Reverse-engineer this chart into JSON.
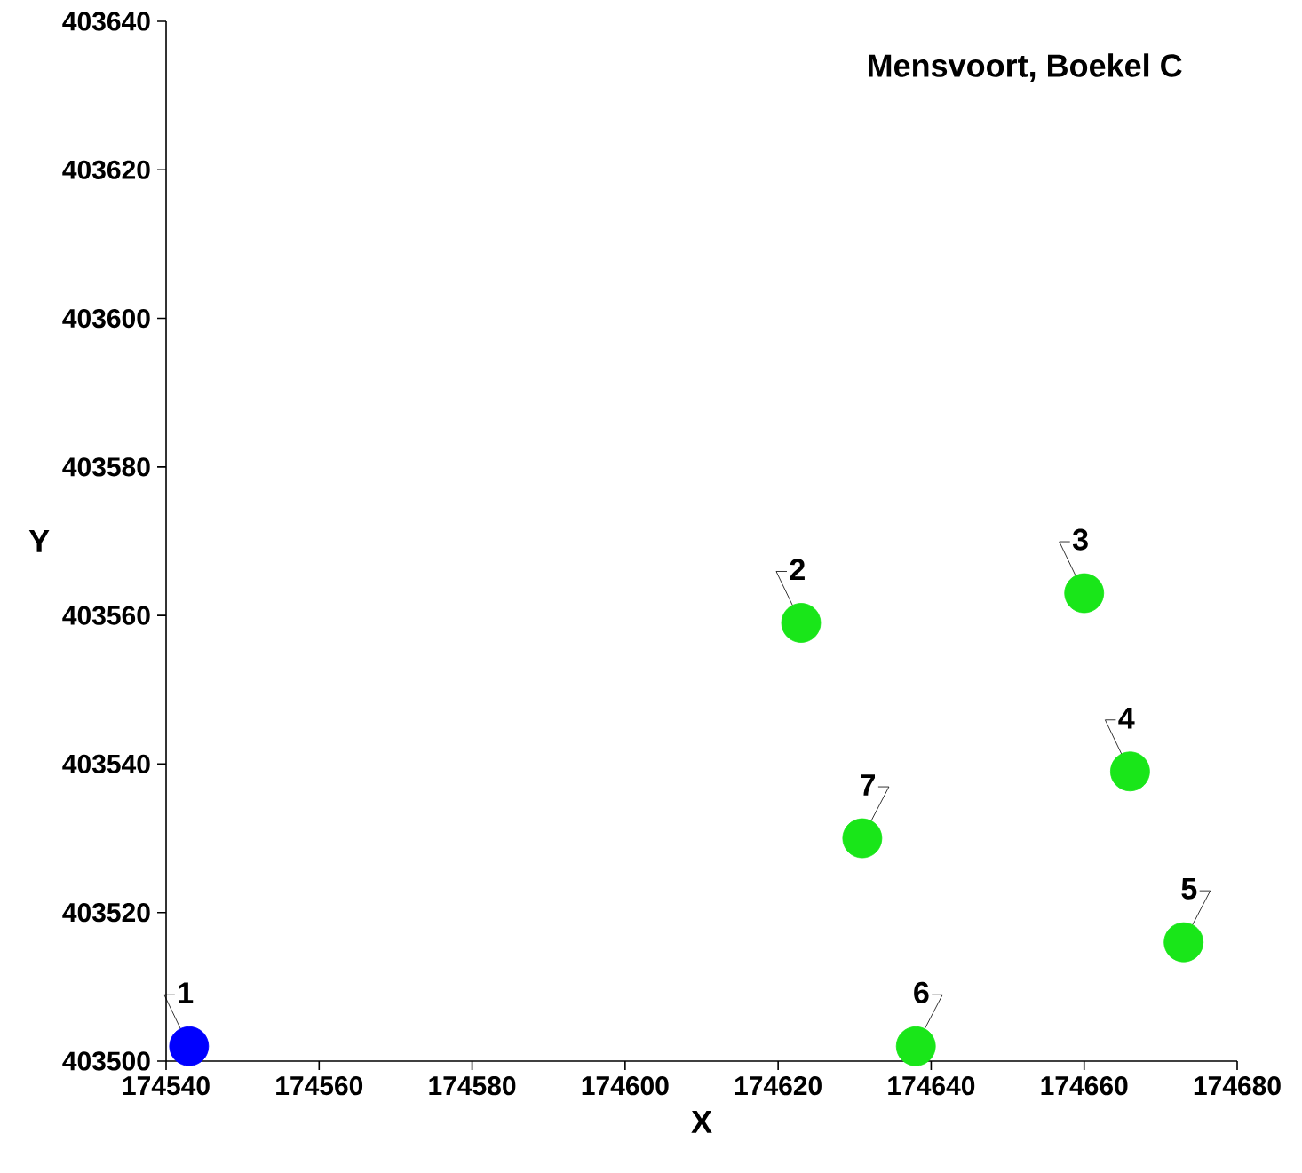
{
  "chart_data": {
    "type": "scatter",
    "title": "Mensvoort, Boekel C",
    "xlabel": "X",
    "ylabel": "Y",
    "series": [
      {
        "color": "#0000ff",
        "x": [
          174543
        ],
        "values": [
          403502
        ]
      },
      {
        "color": "#19e619",
        "x": [
          174623,
          174660,
          174666,
          174673,
          174638,
          174631
        ],
        "values": [
          403559,
          403563,
          403539,
          403516,
          403502,
          403530
        ]
      }
    ],
    "xlim": [
      174540,
      174680
    ],
    "ylim": [
      403500,
      403640
    ],
    "xticks": [
      174540,
      174560,
      174580,
      174600,
      174620,
      174640,
      174660,
      174680
    ],
    "yticks": [
      403500,
      403520,
      403540,
      403560,
      403580,
      403600,
      403620,
      403640
    ],
    "annotations": [
      {
        "text": "1",
        "x": 174543,
        "y": 403502
      },
      {
        "text": "2",
        "x": 174623,
        "y": 403559
      },
      {
        "text": "3",
        "x": 174660,
        "y": 403563
      },
      {
        "text": "4",
        "x": 174666,
        "y": 403539
      },
      {
        "text": "5",
        "x": 174673,
        "y": 403516
      },
      {
        "text": "6",
        "x": 174638,
        "y": 403502
      },
      {
        "text": "7",
        "x": 174631,
        "y": 403530
      }
    ]
  }
}
